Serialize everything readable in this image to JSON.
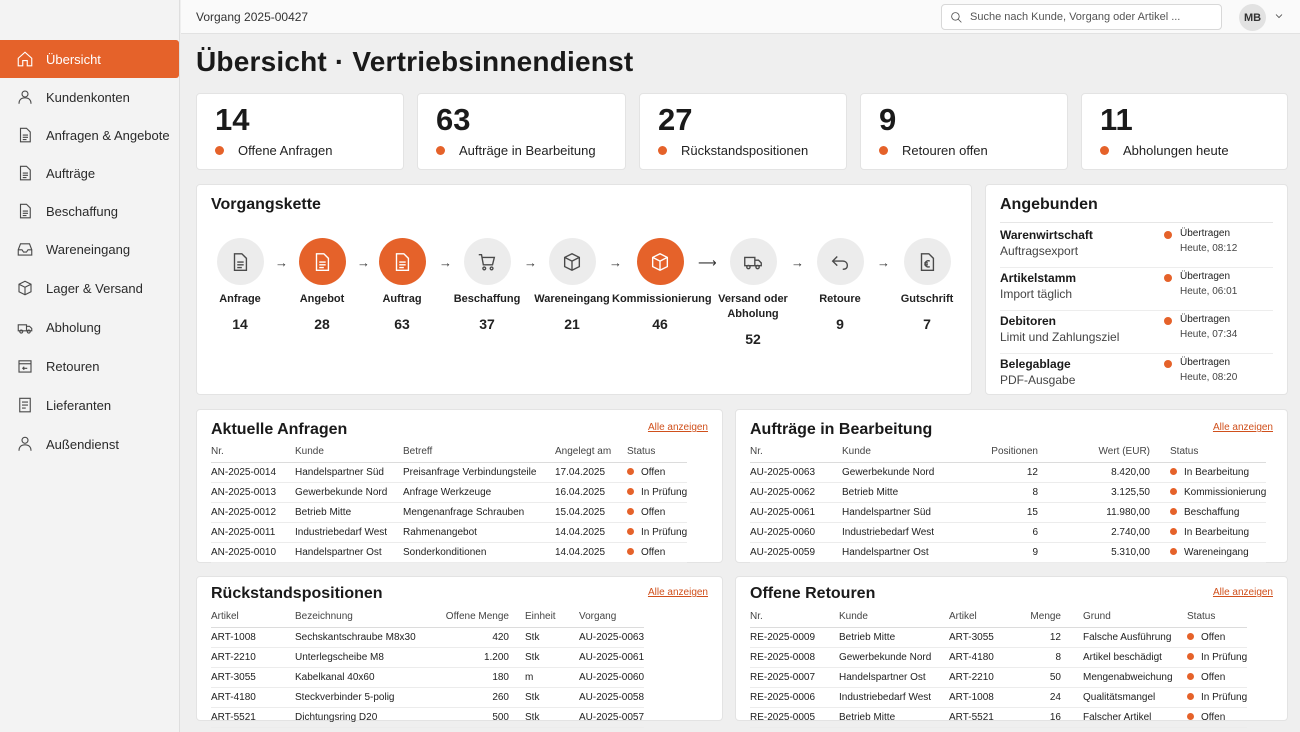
{
  "topbar": {
    "breadcrumb": "Vorgang 2025-00427",
    "search_placeholder": "Suche nach Kunde, Vorgang oder Artikel ...",
    "avatar": "MB"
  },
  "sidebar": {
    "items": [
      {
        "label": "Übersicht",
        "icon": "home-icon",
        "active": true
      },
      {
        "label": "Kundenkonten",
        "icon": "user-icon"
      },
      {
        "label": "Anfragen & Angebote",
        "icon": "document-icon"
      },
      {
        "label": "Aufträge",
        "icon": "document-icon"
      },
      {
        "label": "Beschaffung",
        "icon": "document-icon"
      },
      {
        "label": "Wareneingang",
        "icon": "inbox-icon"
      },
      {
        "label": "Lager & Versand",
        "icon": "box-icon"
      },
      {
        "label": "Abholung",
        "icon": "pickup-icon"
      },
      {
        "label": "Retouren",
        "icon": "return-box-icon"
      },
      {
        "label": "Lieferanten",
        "icon": "list-icon"
      },
      {
        "label": "Außendienst",
        "icon": "person-icon"
      }
    ]
  },
  "page": {
    "title": "Übersicht · Vertriebsinnendienst"
  },
  "kpis": [
    {
      "value": "14",
      "label": "Offene Anfragen"
    },
    {
      "value": "63",
      "label": "Aufträge in Bearbeitung"
    },
    {
      "value": "27",
      "label": "Rückstandspositionen"
    },
    {
      "value": "9",
      "label": "Retouren offen"
    },
    {
      "value": "11",
      "label": "Abholungen heute"
    }
  ],
  "chain": {
    "title": "Vorgangskette",
    "steps": [
      {
        "label": "Anfrage",
        "count": "14",
        "icon": "document-icon",
        "active": false
      },
      {
        "label": "Angebot",
        "count": "28",
        "icon": "document-icon",
        "active": true
      },
      {
        "label": "Auftrag",
        "count": "63",
        "icon": "document-icon",
        "active": true
      },
      {
        "label": "Beschaffung",
        "count": "37",
        "icon": "cart-icon",
        "active": false
      },
      {
        "label": "Wareneingang",
        "count": "21",
        "icon": "box-icon",
        "active": false
      },
      {
        "label": "Kommissionierung",
        "count": "46",
        "icon": "box-icon",
        "active": true
      },
      {
        "label": "Versand oder Abholung",
        "count": "52",
        "icon": "truck-icon",
        "active": false
      },
      {
        "label": "Retoure",
        "count": "9",
        "icon": "return-icon",
        "active": false
      },
      {
        "label": "Gutschrift",
        "count": "7",
        "icon": "euro-document-icon",
        "active": false
      }
    ]
  },
  "connected": {
    "title": "Angebunden",
    "items": [
      {
        "name": "Warenwirtschaft",
        "sub": "Auftragsexport",
        "status": "Übertragen",
        "time": "Heute, 08:12"
      },
      {
        "name": "Artikelstamm",
        "sub": "Import täglich",
        "status": "Übertragen",
        "time": "Heute, 06:01"
      },
      {
        "name": "Debitoren",
        "sub": "Limit und Zahlungsziel",
        "status": "Übertragen",
        "time": "Heute, 07:34"
      },
      {
        "name": "Belegablage",
        "sub": "PDF-Ausgabe",
        "status": "Übertragen",
        "time": "Heute, 08:20"
      }
    ]
  },
  "requests": {
    "title": "Aktuelle Anfragen",
    "link": "Alle anzeigen",
    "columns": [
      "Nr.",
      "Kunde",
      "Betreff",
      "Angelegt am",
      "Status"
    ],
    "rows": [
      [
        "AN-2025-0014",
        "Handelspartner Süd",
        "Preisanfrage Verbindungsteile",
        "17.04.2025",
        "Offen"
      ],
      [
        "AN-2025-0013",
        "Gewerbekunde Nord",
        "Anfrage Werkzeuge",
        "16.04.2025",
        "In Prüfung"
      ],
      [
        "AN-2025-0012",
        "Betrieb Mitte",
        "Mengenanfrage Schrauben",
        "15.04.2025",
        "Offen"
      ],
      [
        "AN-2025-0011",
        "Industriebedarf West",
        "Rahmenangebot",
        "14.04.2025",
        "In Prüfung"
      ],
      [
        "AN-2025-0010",
        "Handelspartner Ost",
        "Sonderkonditionen",
        "14.04.2025",
        "Offen"
      ]
    ]
  },
  "orders": {
    "title": "Aufträge in Bearbeitung",
    "link": "Alle anzeigen",
    "columns": [
      "Nr.",
      "Kunde",
      "Positionen",
      "Wert (EUR)",
      "Status"
    ],
    "rows": [
      [
        "AU-2025-0063",
        "Gewerbekunde Nord",
        "12",
        "8.420,00",
        "In Bearbeitung"
      ],
      [
        "AU-2025-0062",
        "Betrieb Mitte",
        "8",
        "3.125,50",
        "Kommissionierung"
      ],
      [
        "AU-2025-0061",
        "Handelspartner Süd",
        "15",
        "11.980,00",
        "Beschaffung"
      ],
      [
        "AU-2025-0060",
        "Industriebedarf West",
        "6",
        "2.740,00",
        "In Bearbeitung"
      ],
      [
        "AU-2025-0059",
        "Handelspartner Ost",
        "9",
        "5.310,00",
        "Wareneingang"
      ]
    ]
  },
  "backlog": {
    "title": "Rückstandspositionen",
    "link": "Alle anzeigen",
    "columns": [
      "Artikel",
      "Bezeichnung",
      "Offene Menge",
      "Einheit",
      "Vorgang"
    ],
    "rows": [
      [
        "ART-1008",
        "Sechskantschraube M8x30",
        "420",
        "Stk",
        "AU-2025-0063"
      ],
      [
        "ART-2210",
        "Unterlegscheibe M8",
        "1.200",
        "Stk",
        "AU-2025-0061"
      ],
      [
        "ART-3055",
        "Kabelkanal 40x60",
        "180",
        "m",
        "AU-2025-0060"
      ],
      [
        "ART-4180",
        "Steckverbinder 5-polig",
        "260",
        "Stk",
        "AU-2025-0058"
      ],
      [
        "ART-5521",
        "Dichtungsring D20",
        "500",
        "Stk",
        "AU-2025-0057"
      ]
    ]
  },
  "returns": {
    "title": "Offene Retouren",
    "link": "Alle anzeigen",
    "columns": [
      "Nr.",
      "Kunde",
      "Artikel",
      "Menge",
      "Grund",
      "Status"
    ],
    "rows": [
      [
        "RE-2025-0009",
        "Betrieb Mitte",
        "ART-3055",
        "12",
        "Falsche Ausführung",
        "Offen"
      ],
      [
        "RE-2025-0008",
        "Gewerbekunde Nord",
        "ART-4180",
        "8",
        "Artikel beschädigt",
        "In Prüfung"
      ],
      [
        "RE-2025-0007",
        "Handelspartner Ost",
        "ART-2210",
        "50",
        "Mengenabweichung",
        "Offen"
      ],
      [
        "RE-2025-0006",
        "Industriebedarf West",
        "ART-1008",
        "24",
        "Qualitätsmangel",
        "In Prüfung"
      ],
      [
        "RE-2025-0005",
        "Betrieb Mitte",
        "ART-5521",
        "16",
        "Falscher Artikel",
        "Offen"
      ]
    ]
  },
  "colors": {
    "accent": "#e5622a",
    "link": "#d0501c",
    "background": "#efefef"
  }
}
